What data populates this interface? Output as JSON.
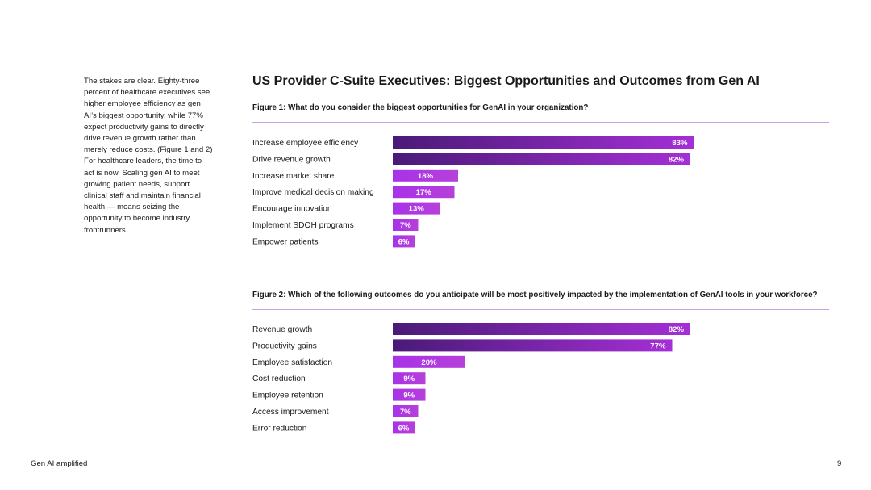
{
  "intro_text": "The stakes are clear. Eighty-three percent of healthcare executives see higher employee efficiency as gen AI’s biggest opportunity, while 77% expect productivity gains to directly drive revenue growth rather than merely reduce costs. (Figure 1 and 2) For healthcare leaders, the time to act is now. Scaling gen AI to meet growing patient needs, support clinical staff and maintain financial health — means seizing the opportunity to become industry frontrunners.",
  "title": {
    "bold": "US Provider C-Suite Executives:",
    "regular": " Biggest Opportunities and Outcomes from Gen AI"
  },
  "colors": {
    "bar_dark_start": "#4a1a78",
    "bar_dark_end": "#a52fd6",
    "bar_light_start": "#a832e8",
    "bar_light_end": "#b640da",
    "label_text": "#ffffff"
  },
  "chart_data": [
    {
      "type": "bar",
      "orientation": "horizontal",
      "title": "Figure 1: What do you consider the biggest opportunities for GenAI in your organization?",
      "categories": [
        "Increase employee efficiency",
        "Drive revenue growth",
        "Increase market share",
        "Improve medical decision making",
        "Encourage innovation",
        "Implement SDOH programs",
        "Empower patients"
      ],
      "values": [
        83,
        82,
        18,
        17,
        13,
        7,
        6
      ],
      "value_suffix": "%",
      "xlim": [
        0,
        100
      ],
      "grid": false
    },
    {
      "type": "bar",
      "orientation": "horizontal",
      "title": "Figure 2: Which of the following outcomes do you anticipate will be most positively impacted by the implementation of GenAI tools in your workforce?",
      "categories": [
        "Revenue growth",
        "Productivity gains",
        "Employee satisfaction",
        "Cost reduction",
        "Employee retention",
        "Access improvement",
        "Error reduction"
      ],
      "values": [
        82,
        77,
        20,
        9,
        9,
        7,
        6
      ],
      "value_suffix": "%",
      "xlim": [
        0,
        100
      ],
      "grid": false
    }
  ],
  "footer": {
    "left": "Gen AI amplified",
    "page_number": "9"
  }
}
